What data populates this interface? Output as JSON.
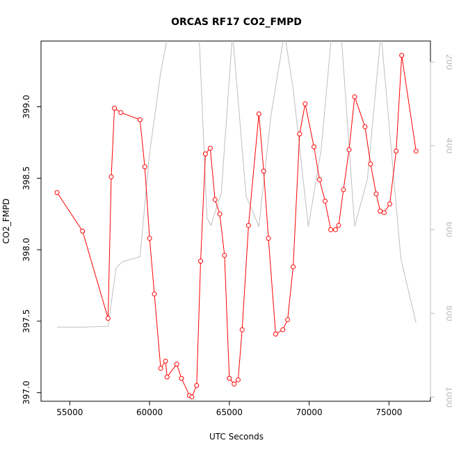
{
  "chart_data": {
    "type": "line",
    "title": "ORCAS RF17 CO2_FMPD",
    "xlabel": "UTC Seconds",
    "ylabel": "CO2_FMPD",
    "xlim": [
      53200,
      77600
    ],
    "ylim": [
      396.94,
      399.46
    ],
    "y2lim": [
      1010,
      150
    ],
    "xticks": [
      "55000",
      "60000",
      "65000",
      "70000",
      "75000"
    ],
    "yticks": [
      "397.0",
      "397.5",
      "398.0",
      "398.5",
      "399.0"
    ],
    "y2ticks": [
      "200",
      "400",
      "600",
      "800",
      "1000"
    ],
    "grid": false,
    "colors": {
      "primary": "#ff0000",
      "secondary": "#bebebe"
    },
    "series": [
      {
        "axis": "left",
        "color": "#ff0000",
        "markers": "open-circle",
        "x": [
          54200,
          55800,
          57400,
          57600,
          57800,
          58200,
          59400,
          59700,
          60000,
          60300,
          60700,
          61000,
          61100,
          61700,
          62000,
          62500,
          62650,
          62950,
          63200,
          63500,
          63800,
          64100,
          64400,
          64700,
          65000,
          65300,
          65550,
          65800,
          66200,
          66850,
          67150,
          67450,
          67900,
          68350,
          68650,
          69000,
          69400,
          69750,
          70300,
          70650,
          71000,
          71350,
          71650,
          71850,
          72150,
          72500,
          72850,
          73500,
          73850,
          74200,
          74450,
          74700,
          75050,
          75450,
          75800,
          76700
        ],
        "values": [
          398.4,
          398.13,
          397.52,
          398.51,
          398.99,
          398.96,
          398.91,
          398.58,
          398.08,
          397.69,
          397.17,
          397.22,
          397.11,
          397.2,
          397.1,
          396.98,
          396.97,
          397.05,
          397.92,
          398.67,
          398.71,
          398.35,
          398.25,
          397.96,
          397.1,
          397.06,
          397.09,
          397.44,
          398.17,
          398.95,
          398.55,
          398.08,
          397.41,
          397.44,
          397.51,
          397.88,
          398.81,
          399.02,
          398.72,
          398.49,
          398.34,
          398.14,
          398.14,
          398.17,
          398.42,
          398.7,
          399.07,
          398.86,
          398.6,
          398.39,
          398.27,
          398.26,
          398.32,
          398.69,
          399.36,
          398.69
        ]
      },
      {
        "axis": "right",
        "color": "#bebebe",
        "markers": "none",
        "x": [
          54200,
          55800,
          57400,
          57900,
          58300,
          59400,
          60000,
          60700,
          61200,
          61700,
          62100,
          62500,
          63050,
          63600,
          63850,
          64500,
          65200,
          66050,
          66850,
          67600,
          68450,
          69000,
          69950,
          70750,
          71450,
          72000,
          72850,
          73650,
          74500,
          75750,
          76700
        ],
        "values": [
          833,
          833,
          831,
          692,
          677,
          665,
          418,
          225,
          125,
          148,
          138,
          90,
          90,
          573,
          590,
          512,
          130,
          520,
          593,
          330,
          130,
          265,
          593,
          410,
          115,
          130,
          593,
          480,
          130,
          670,
          823
        ]
      }
    ]
  }
}
